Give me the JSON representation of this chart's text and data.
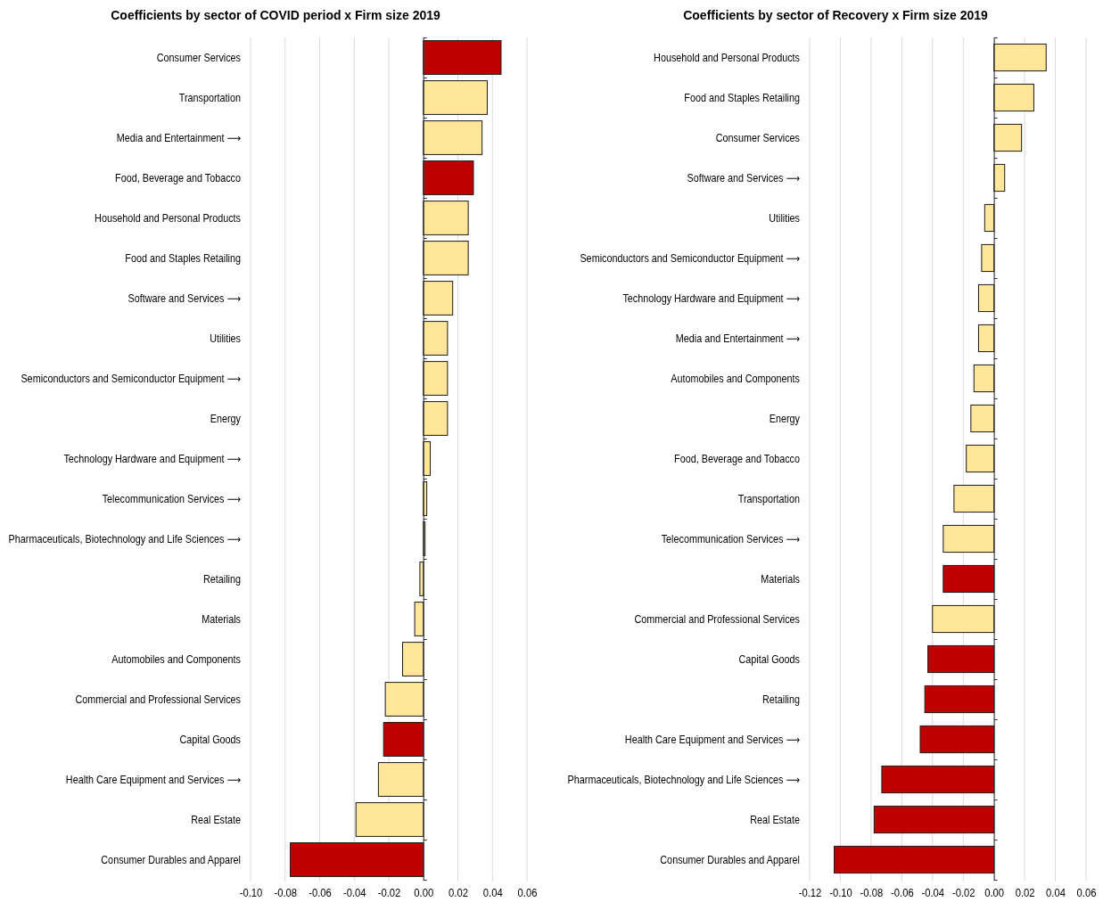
{
  "chart_data": [
    {
      "type": "bar",
      "orientation": "horizontal",
      "title": "Coefficients by sector of COVID period x Firm size 2019",
      "categories": [
        "Consumer Services",
        "Transportation",
        "Media and Entertainment ⟶",
        "Food, Beverage and Tobacco",
        "Household and Personal Products",
        "Food and Staples Retailing",
        "Software and Services ⟶",
        "Utilities",
        "Semiconductors and Semiconductor Equipment ⟶",
        "Energy",
        "Technology Hardware and Equipment ⟶",
        "Telecommunication Services ⟶",
        "Pharmaceuticals, Biotechnology and Life Sciences ⟶",
        "Retailing",
        "Materials",
        "Automobiles and Components",
        "Commercial and Professional Services",
        "Capital Goods",
        "Health Care Equipment and Services ⟶",
        "Real Estate",
        "Consumer Durables and Apparel"
      ],
      "values": [
        0.045,
        0.037,
        0.034,
        0.029,
        0.026,
        0.026,
        0.017,
        0.014,
        0.014,
        0.014,
        0.004,
        0.002,
        0.001,
        -0.002,
        -0.005,
        -0.012,
        -0.022,
        -0.023,
        -0.026,
        -0.039,
        -0.077
      ],
      "colors": [
        "#c00000",
        "#ffe699",
        "#ffe699",
        "#c00000",
        "#ffe699",
        "#ffe699",
        "#ffe699",
        "#ffe699",
        "#ffe699",
        "#ffe699",
        "#ffe699",
        "#ffe699",
        "#ffe699",
        "#ffe699",
        "#ffe699",
        "#ffe699",
        "#ffe699",
        "#c00000",
        "#ffe699",
        "#ffe699",
        "#c00000"
      ],
      "xlim": [
        -0.1,
        0.06
      ],
      "xticks": [
        {
          "value": -0.1,
          "label": "-0.10"
        },
        {
          "value": -0.08,
          "label": "-0.08"
        },
        {
          "value": -0.06,
          "label": "-0.06"
        },
        {
          "value": -0.04,
          "label": "-0.04"
        },
        {
          "value": -0.02,
          "label": "-0.02"
        },
        {
          "value": 0,
          "label": "0.00"
        },
        {
          "value": 0.02,
          "label": "0.02"
        },
        {
          "value": 0.04,
          "label": "0.04"
        },
        {
          "value": 0.06,
          "label": "0.06"
        }
      ],
      "grid": "x"
    },
    {
      "type": "bar",
      "orientation": "horizontal",
      "title": "Coefficients by sector of Recovery x Firm size 2019",
      "categories": [
        "Household and Personal Products",
        "Food and Staples Retailing",
        "Consumer Services",
        "Software and Services ⟶",
        "Utilities",
        "Semiconductors and Semiconductor Equipment ⟶",
        "Technology Hardware and Equipment ⟶",
        "Media and Entertainment ⟶",
        "Automobiles and Components",
        "Energy",
        "Food, Beverage and Tobacco",
        "Transportation",
        "Telecommunication Services ⟶",
        "Materials",
        "Commercial and Professional Services",
        "Capital Goods",
        "Retailing",
        "Health Care Equipment and Services ⟶",
        "Pharmaceuticals, Biotechnology and Life Sciences ⟶",
        "Real Estate",
        "Consumer Durables and Apparel"
      ],
      "values": [
        0.034,
        0.026,
        0.018,
        0.007,
        -0.006,
        -0.008,
        -0.01,
        -0.01,
        -0.013,
        -0.015,
        -0.018,
        -0.026,
        -0.033,
        -0.033,
        -0.04,
        -0.043,
        -0.045,
        -0.048,
        -0.073,
        -0.078,
        -0.104
      ],
      "colors": [
        "#ffe699",
        "#ffe699",
        "#ffe699",
        "#ffe699",
        "#ffe699",
        "#ffe699",
        "#ffe699",
        "#ffe699",
        "#ffe699",
        "#ffe699",
        "#ffe699",
        "#ffe699",
        "#ffe699",
        "#c00000",
        "#ffe699",
        "#c00000",
        "#c00000",
        "#c00000",
        "#c00000",
        "#c00000",
        "#c00000"
      ],
      "xlim": [
        -0.12,
        0.06
      ],
      "xticks": [
        {
          "value": -0.12,
          "label": "-0.12"
        },
        {
          "value": -0.1,
          "label": "-0.10"
        },
        {
          "value": -0.08,
          "label": "-0.08"
        },
        {
          "value": -0.06,
          "label": "-0.06"
        },
        {
          "value": -0.04,
          "label": "-0.04"
        },
        {
          "value": -0.02,
          "label": "-0.02"
        },
        {
          "value": 0,
          "label": "0.00"
        },
        {
          "value": 0.02,
          "label": "0.02"
        },
        {
          "value": 0.04,
          "label": "0.04"
        },
        {
          "value": 0.06,
          "label": "0.06"
        }
      ],
      "grid": "x"
    }
  ]
}
